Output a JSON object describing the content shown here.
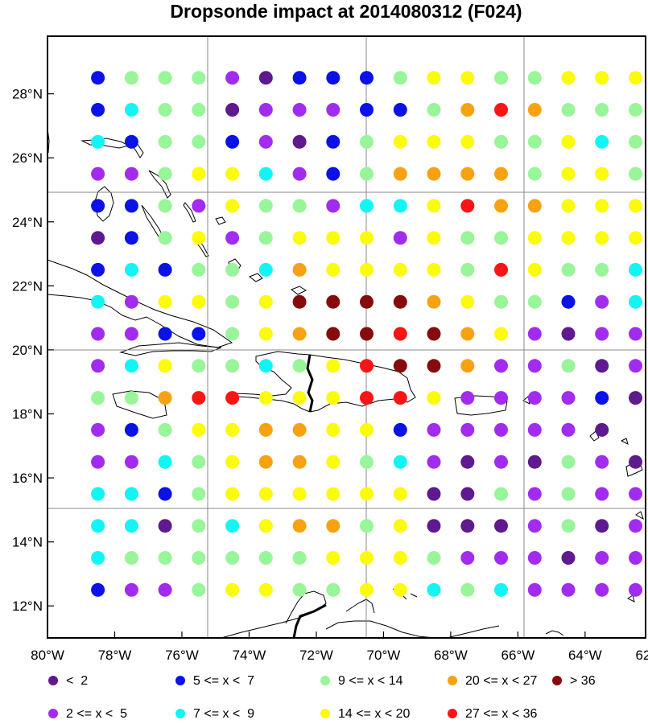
{
  "title": "Dropsonde impact at 2014080312 (F024)",
  "x_ticks": [
    "80°W",
    "78°W",
    "76°W",
    "74°W",
    "72°W",
    "70°W",
    "68°W",
    "66°W",
    "64°W",
    "62°W"
  ],
  "y_ticks": [
    "28°N",
    "26°N",
    "24°N",
    "22°N",
    "20°N",
    "18°N",
    "16°N",
    "14°N",
    "12°N"
  ],
  "legend": [
    {
      "label": "<  2",
      "color": "#5e1a8e"
    },
    {
      "label": "5 <= x <  7",
      "color": "#0a12e8"
    },
    {
      "label": "9 <= x < 14",
      "color": "#98f59a"
    },
    {
      "label": "20 <= x < 27",
      "color": "#f7a212"
    },
    {
      "label": "> 36",
      "color": "#860c0c"
    },
    {
      "label": "2 <= x <  5",
      "color": "#a12cef"
    },
    {
      "label": "7 <= x <  9",
      "color": "#12f5f5"
    },
    {
      "label": "14 <= x < 20",
      "color": "#fbfb0a"
    },
    {
      "label": "27 <= x < 36",
      "color": "#f91515"
    }
  ],
  "chart_data": {
    "type": "scatter",
    "title": "Dropsonde impact at 2014080312 (F024)",
    "x_range_lon": [
      -80,
      -62.2
    ],
    "y_range_lat": [
      11,
      29.8
    ],
    "grid": true,
    "lon": [
      -78.5,
      -77.5,
      -76.5,
      -75.5,
      -74.5,
      -73.5,
      -72.5,
      -71.5,
      -70.5,
      -69.5,
      -68.5,
      -67.5,
      -66.5,
      -65.5,
      -64.5,
      -63.5,
      -62.5
    ],
    "lat": [
      28.5,
      27.5,
      26.5,
      25.5,
      24.5,
      23.5,
      22.5,
      21.5,
      20.5,
      19.5,
      18.5,
      17.5,
      16.5,
      15.5,
      14.5,
      13.5,
      12.5
    ],
    "category_key": {
      "a": "<  2",
      "p": "2 <= x <  5",
      "b": "5 <= x <  7",
      "c": "7 <= x <  9",
      "g": "9 <= x < 14",
      "y": "14 <= x < 20",
      "o": "20 <= x < 27",
      "r": "27 <= x < 36",
      "d": "> 36"
    },
    "rows": [
      "bgggpabbbgyyggyyy",
      "bcggapppbbgoroggg",
      "cbggbpabgyyyggycg",
      "ppgyycpbgoooogyyg",
      "bbgpyggpccyrooyyy",
      "abgypgyyypyggyyyy",
      "bcbggcoyyyygryggc",
      "cpyygyddddoyggbpc",
      "ppbbgyoddrdoypapp",
      "pcyggcgyrddoppgap",
      "ggorryyyrryppppba",
      "pbgyyooyybpppppa",
      "ppcgyooygcpapagpa",
      "ccbgyyyyyyaagpgpp",
      "ccagcyoogyaaapgap",
      "cggggggyyygpppapp",
      "bppgyyggyycgcpppp"
    ]
  }
}
